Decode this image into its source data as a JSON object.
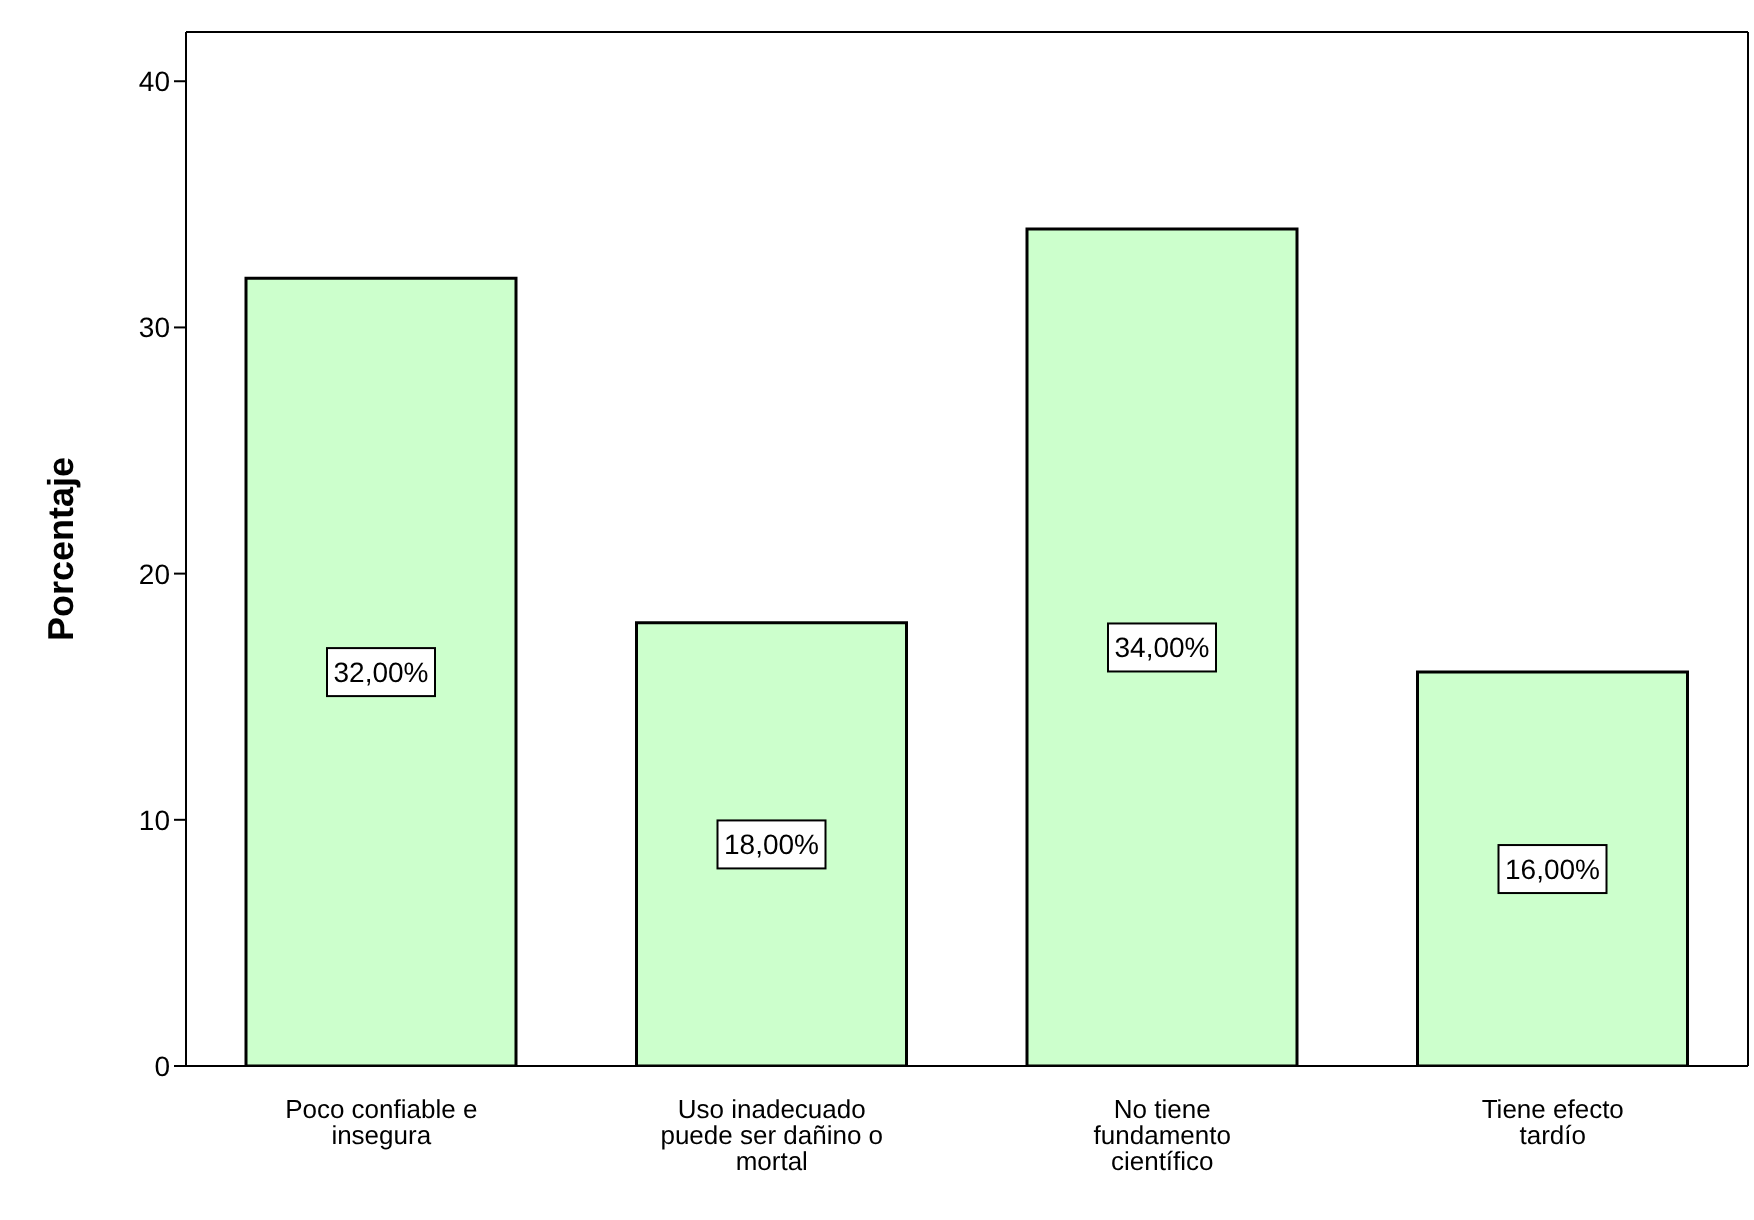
{
  "chart_data": {
    "type": "bar",
    "ylabel": "Porcentaje",
    "categories": [
      "Poco confiable e insegura",
      "Uso inadecuado puede ser dañino o mortal",
      "No tiene fundamento científico",
      "Tiene efecto tardío"
    ],
    "values": [
      32,
      18,
      34,
      16
    ],
    "value_labels": [
      "32,00%",
      "18,00%",
      "34,00%",
      "16,00%"
    ],
    "color": "#ccffcc",
    "ylim": [
      0,
      42
    ],
    "yticks": [
      0,
      10,
      20,
      30,
      40
    ],
    "grid": false,
    "legend": false
  }
}
